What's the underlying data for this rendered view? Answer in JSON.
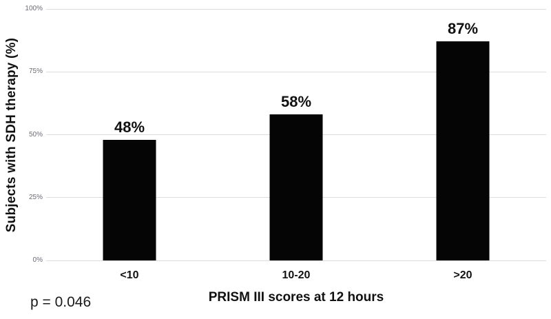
{
  "chart_data": {
    "type": "bar",
    "categories": [
      "<10",
      "10-20",
      ">20"
    ],
    "values": [
      48,
      58,
      87
    ],
    "value_labels": [
      "48%",
      "58%",
      "87%"
    ],
    "xlabel": "PRISM III scores at 12 hours",
    "ylabel": "Subjects with SDH therapy (%)",
    "ylim": [
      0,
      100
    ],
    "yticks": [
      {
        "value": 0,
        "label": "0%"
      },
      {
        "value": 25,
        "label": "25%"
      },
      {
        "value": 50,
        "label": "50%"
      },
      {
        "value": 75,
        "label": "75%"
      },
      {
        "value": 100,
        "label": "100%"
      }
    ],
    "grid": true,
    "legend": "none",
    "bar_color": "#050505",
    "gridline_color": "#dcdcdc",
    "tick_label_color": "#6b6b75"
  },
  "annotation": {
    "p_value": "p = 0.046"
  }
}
